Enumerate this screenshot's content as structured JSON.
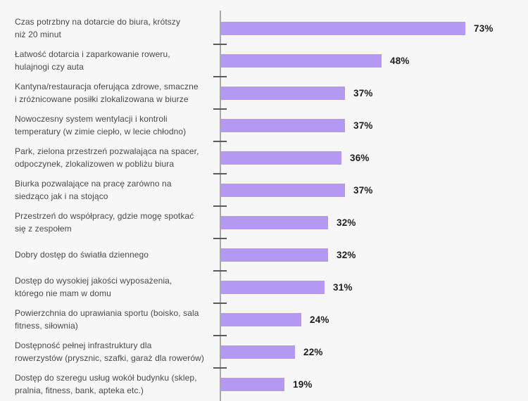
{
  "chart_data": {
    "type": "bar",
    "orientation": "horizontal",
    "title": "",
    "xlabel": "",
    "ylabel": "",
    "unit": "%",
    "value_axis_labels_visible": false,
    "grid": false,
    "legend": null,
    "value_range": [
      0,
      92
    ],
    "categories": [
      "Czas potrzbny na dotarcie do biura, krótszy niż 20 minut",
      "Łatwość dotarcia i zaparkowanie roweru, hulajnogi czy auta",
      "Kantyna/restauracja oferująca zdrowe, smaczne i zróżnicowane posiłki zlokalizowana w biurze",
      "Nowoczesny system wentylacji i kontroli temperatury (w zimie ciepło, w lecie chłodno)",
      "Park, zielona przestrzeń pozwalająca na spacer, odpoczynek, zlokalizowen w pobliżu biura",
      "Biurka pozwalające na pracę zarówno na siedząco jak i na stojąco",
      "Przestrzeń do współpracy, gdzie mogę spotkać się z zespołem",
      "Dobry dostęp do światła dziennego",
      "Dostęp do wysokiej jakości wyposażenia, którego nie mam w domu",
      "Powierzchnia do uprawiania sportu (boisko, sala fitness, siłownia)",
      "Dostępność pełnej infrastruktury dla rowerzystów (prysznic, szafki, garaż dla rowerów)",
      "Dostęp do szeregu usług wokół budynku (sklep, pralnia, fitness, bank, apteka etc.)"
    ],
    "values": [
      73,
      48,
      37,
      37,
      36,
      37,
      32,
      32,
      31,
      24,
      22,
      19
    ],
    "rows": [
      {
        "label_lines": [
          "Czas potrzbny na dotarcie do biura, krótszy",
          "niż 20 minut"
        ],
        "value": 73,
        "value_label": "73%"
      },
      {
        "label_lines": [
          "Łatwość dotarcia i zaparkowanie roweru,",
          "hulajnogi czy auta"
        ],
        "value": 48,
        "value_label": "48%"
      },
      {
        "label_lines": [
          "Kantyna/restauracja oferująca zdrowe, smaczne",
          "i zróżnicowane posiłki zlokalizowana w biurze"
        ],
        "value": 37,
        "value_label": "37%"
      },
      {
        "label_lines": [
          "Nowoczesny system wentylacji i kontroli",
          "temperatury (w zimie ciepło, w lecie chłodno)"
        ],
        "value": 37,
        "value_label": "37%"
      },
      {
        "label_lines": [
          "Park, zielona przestrzeń pozwalająca na spacer,",
          "odpoczynek, zlokalizowen w pobliżu biura"
        ],
        "value": 36,
        "value_label": "36%"
      },
      {
        "label_lines": [
          "Biurka pozwalające na pracę zarówno na",
          "siedząco jak i na stojąco"
        ],
        "value": 37,
        "value_label": "37%"
      },
      {
        "label_lines": [
          "Przestrzeń do współpracy, gdzie mogę spotkać",
          "się z zespołem"
        ],
        "value": 32,
        "value_label": "32%"
      },
      {
        "label_lines": [
          "Dobry dostęp do światła dziennego"
        ],
        "value": 32,
        "value_label": "32%"
      },
      {
        "label_lines": [
          "Dostęp do wysokiej jakości wyposażenia,",
          "którego nie mam w domu"
        ],
        "value": 31,
        "value_label": "31%"
      },
      {
        "label_lines": [
          "Powierzchnia do uprawiania sportu (boisko, sala",
          "fitness, siłownia)"
        ],
        "value": 24,
        "value_label": "24%"
      },
      {
        "label_lines": [
          "Dostępność pełnej infrastruktury dla",
          "rowerzystów (prysznic, szafki, garaż dla rowerów)"
        ],
        "value": 22,
        "value_label": "22%"
      },
      {
        "label_lines": [
          "Dostęp do szeregu usług wokół budynku (sklep,",
          "pralnia, fitness, bank, apteka etc.)"
        ],
        "value": 19,
        "value_label": "19%"
      }
    ],
    "colors": {
      "bar": "#b499f2",
      "background": "#f7f7f7",
      "axis_line": "#a9a9a9",
      "tick": "#5a5a5a",
      "category_text": "#484848",
      "value_text": "#1d1d1d"
    }
  }
}
